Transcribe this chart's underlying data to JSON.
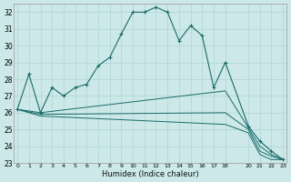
{
  "xlabel": "Humidex (Indice chaleur)",
  "bg_color": "#cce8e8",
  "line_color": "#1a6b6b",
  "grid_color": "#b0d4d4",
  "ylim": [
    23,
    32.5
  ],
  "xlim": [
    -0.3,
    23.3
  ],
  "yticks": [
    23,
    24,
    25,
    26,
    27,
    28,
    29,
    30,
    31,
    32
  ],
  "xticks": [
    0,
    1,
    2,
    3,
    4,
    5,
    6,
    7,
    8,
    9,
    10,
    11,
    12,
    13,
    14,
    15,
    16,
    17,
    18,
    20,
    21,
    22,
    23
  ],
  "xtick_labels": [
    "0",
    "1",
    "2",
    "3",
    "4",
    "5",
    "6",
    "7",
    "8",
    "9",
    "10",
    "11",
    "12",
    "13",
    "14",
    "15",
    "16",
    "17",
    "18",
    "20",
    "21",
    "22",
    "23"
  ],
  "curve_main": {
    "x": [
      0,
      1,
      2,
      3,
      4,
      5,
      6,
      7,
      8,
      9,
      10,
      11,
      12,
      13,
      14,
      15,
      16,
      17,
      18,
      20,
      21,
      22,
      23
    ],
    "y": [
      26.2,
      28.3,
      26.0,
      27.5,
      27.0,
      27.5,
      27.7,
      28.8,
      29.3,
      30.7,
      32.0,
      32.0,
      32.3,
      32.0,
      30.3,
      31.2,
      30.6,
      27.5,
      29.0,
      25.2,
      24.3,
      23.7,
      23.2
    ]
  },
  "curves_flat": [
    {
      "x": [
        0,
        2,
        18,
        20,
        21,
        22,
        23
      ],
      "y": [
        26.2,
        26.0,
        27.3,
        25.1,
        24.0,
        23.5,
        23.2
      ]
    },
    {
      "x": [
        0,
        2,
        18,
        20,
        21,
        22,
        23
      ],
      "y": [
        26.2,
        25.9,
        26.0,
        25.0,
        23.7,
        23.4,
        23.2
      ]
    },
    {
      "x": [
        0,
        2,
        18,
        20,
        21,
        22,
        23
      ],
      "y": [
        26.2,
        25.8,
        25.3,
        24.8,
        23.5,
        23.2,
        23.2
      ]
    }
  ]
}
